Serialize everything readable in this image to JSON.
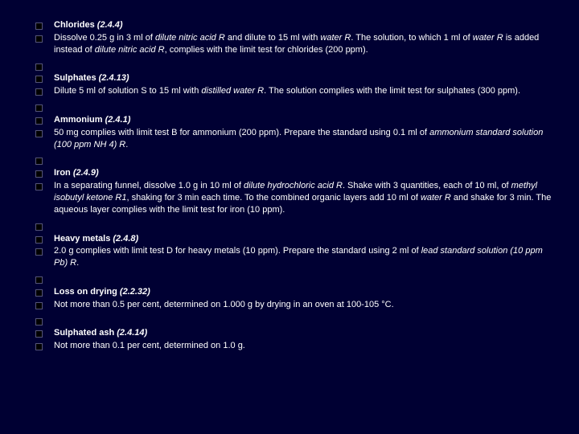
{
  "colors": {
    "background": "#000033",
    "text": "#ffffff",
    "bullet_fill": "#000000",
    "bullet_border": "#555577"
  },
  "typography": {
    "font_family": "Verdana, Arial, sans-serif",
    "font_size_pt": 8,
    "line_height": 1.35
  },
  "items": [
    {
      "heading": "Chlorides",
      "ref": "(2.4.4)",
      "body_parts": [
        {
          "t": " Dissolve 0.25 g in 3 ml of "
        },
        {
          "t": "dilute nitric acid R",
          "i": true
        },
        {
          "t": " and dilute to 15 ml with "
        },
        {
          "t": "water R",
          "i": true
        },
        {
          "t": ". The  solution, to which 1 ml of "
        },
        {
          "t": "water R",
          "i": true
        },
        {
          "t": " is added instead of "
        },
        {
          "t": "dilute nitric acid R",
          "i": true
        },
        {
          "t": ", complies  with the limit test for chlorides (200 ppm)."
        }
      ]
    },
    {
      "heading": "Sulphates",
      "ref": "(2.4.13)",
      "body_parts": [
        {
          "t": " Dilute 5 ml of solution S to 15 ml with "
        },
        {
          "t": "distilled water R",
          "i": true
        },
        {
          "t": ". The solution complies with  the limit test for sulphates (300 ppm)."
        }
      ]
    },
    {
      "heading": "Ammonium",
      "ref": "(2.4.1)",
      "body_parts": [
        {
          "t": "  50 mg complies with limit test B for ammonium (200 ppm). Prepare the standard  using 0.1 ml of "
        },
        {
          "t": "ammonium standard solution (100 ppm NH 4) R",
          "i": true
        },
        {
          "t": "."
        }
      ]
    },
    {
      "heading": "Iron",
      "ref": "(2.4.9)",
      "body_parts": [
        {
          "t": "  In a separating funnel, dissolve 1.0 g in 10 ml of "
        },
        {
          "t": "dilute hydrochloric acid R",
          "i": true
        },
        {
          "t": ". Shake  with 3 quantities, each of 10 ml, of "
        },
        {
          "t": "methyl isobutyl ketone R1",
          "i": true
        },
        {
          "t": ", shaking for 3 min  each time. To the combined organic layers add 10 ml of "
        },
        {
          "t": "water R",
          "i": true
        },
        {
          "t": " and shake for 3 min.  The aqueous layer complies with the limit test for iron (10 ppm)."
        }
      ]
    },
    {
      "heading": "Heavy metals",
      "ref": "(2.4.8)",
      "body_parts": [
        {
          "t": "  2.0 g complies with limit test D for heavy metals (10 ppm). Prepare the standard  using 2 ml of "
        },
        {
          "t": "lead standard solution (10 ppm Pb) R",
          "i": true
        },
        {
          "t": "."
        }
      ]
    },
    {
      "heading": "Loss on drying",
      "ref": "(2.2.32)",
      "body_parts": [
        {
          "t": "  Not more than 0.5 per cent, determined on 1.000 g by drying in an oven at 100-105 °C."
        }
      ]
    },
    {
      "heading": "Sulphated ash",
      "ref": "(2.4.14)",
      "body_parts": [
        {
          "t": "  Not more than 0.1 per cent, determined on 1.0 g."
        }
      ]
    }
  ]
}
